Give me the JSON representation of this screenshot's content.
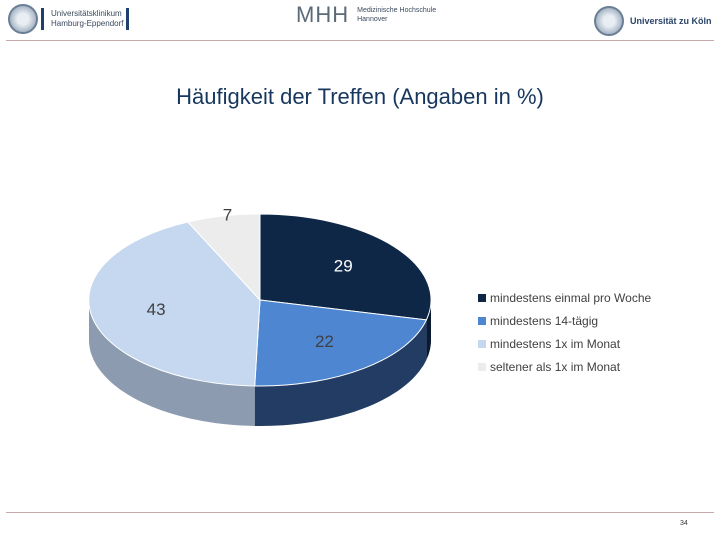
{
  "header": {
    "left_logo_line1": "Universitätsklinikum",
    "left_logo_line2": "Hamburg-Eppendorf",
    "mid_logo_mark": "MHH",
    "mid_logo_line1": "Medizinische Hochschule",
    "mid_logo_line2": "Hannover",
    "right_logo_text": "Universität zu Köln"
  },
  "page_number": "34",
  "chart_data": {
    "type": "pie",
    "style": "3d",
    "title": "Häufigkeit der Treffen (Angaben in %)",
    "categories": [
      "mindestens einmal pro Woche",
      "mindestens 14-tägig",
      "mindestens 1x im Monat",
      "seltener als 1x im Monat"
    ],
    "values": [
      29,
      22,
      43,
      7
    ],
    "data_labels": [
      "29",
      "22",
      "43",
      "7"
    ],
    "colors": [
      "#0f2747",
      "#4e86d1",
      "#c5d8ef",
      "#ececec"
    ],
    "side_colors": [
      "#0a1a33",
      "#223c63",
      "#8d9bb0",
      "#b9b9b9"
    ],
    "legend_position": "right"
  }
}
